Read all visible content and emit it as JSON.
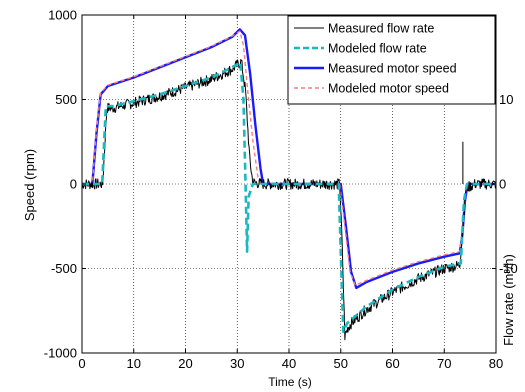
{
  "chart_data": {
    "type": "line",
    "xlabel": "Time (s)",
    "ylabel": "Speed (rpm)",
    "y2label": "Flow rate (m³/h)",
    "xlim": [
      0,
      80
    ],
    "ylim": [
      -1000,
      1000
    ],
    "y2lim": [
      -20,
      20
    ],
    "xticks": [
      "0",
      "10",
      "20",
      "30",
      "40",
      "50",
      "60",
      "70",
      "80"
    ],
    "yticks": [
      "-1000",
      "-500",
      "0",
      "500",
      "1000"
    ],
    "y2ticks": [
      "-10",
      "0",
      "10"
    ],
    "grid": true,
    "legend_position": "top-right",
    "series": [
      {
        "name": "Measured flow rate",
        "axis": "right",
        "color": "#000000",
        "style": "solid",
        "points": [
          [
            0,
            0
          ],
          [
            4,
            0
          ],
          [
            4.8,
            9
          ],
          [
            6,
            9
          ],
          [
            10,
            9.6
          ],
          [
            15,
            10.4
          ],
          [
            20,
            11.4
          ],
          [
            25,
            12.4
          ],
          [
            29,
            13.6
          ],
          [
            30.8,
            14.5
          ],
          [
            31.6,
            11
          ],
          [
            32.4,
            3
          ],
          [
            33,
            0.2
          ],
          [
            35,
            0
          ],
          [
            40,
            0
          ],
          [
            48,
            0
          ],
          [
            49.8,
            0
          ],
          [
            50.2,
            -6
          ],
          [
            50.8,
            -18
          ],
          [
            51.4,
            -17
          ],
          [
            52,
            -16.5
          ],
          [
            55,
            -14.8
          ],
          [
            60,
            -12.8
          ],
          [
            65,
            -11.2
          ],
          [
            70,
            -10
          ],
          [
            73,
            -9.6
          ],
          [
            73.6,
            -5
          ],
          [
            74.2,
            -0.5
          ],
          [
            76,
            0
          ],
          [
            80,
            0
          ]
        ]
      },
      {
        "name": "Modeled flow rate",
        "axis": "right",
        "color": "#1ab8c0",
        "style": "dashed",
        "points": [
          [
            0,
            0
          ],
          [
            3.9,
            0
          ],
          [
            4.6,
            9.2
          ],
          [
            6,
            9.2
          ],
          [
            10,
            9.8
          ],
          [
            15,
            10.6
          ],
          [
            20,
            11.6
          ],
          [
            25,
            12.6
          ],
          [
            29,
            13.8
          ],
          [
            30.6,
            14.4
          ],
          [
            31.2,
            10
          ],
          [
            31.6,
            0
          ],
          [
            31.9,
            -8
          ],
          [
            32.2,
            -1.5
          ],
          [
            33,
            0
          ],
          [
            40,
            0
          ],
          [
            49.6,
            0
          ],
          [
            50,
            -8
          ],
          [
            50.5,
            -17.5
          ],
          [
            51.2,
            -16.5
          ],
          [
            55,
            -14.5
          ],
          [
            60,
            -12.5
          ],
          [
            65,
            -11
          ],
          [
            70,
            -9.8
          ],
          [
            73.2,
            -9.4
          ],
          [
            73.8,
            -2
          ],
          [
            74.4,
            0
          ],
          [
            80,
            0
          ]
        ]
      },
      {
        "name": "Measured motor speed",
        "axis": "left",
        "color": "#1a1aff",
        "style": "solid",
        "points": [
          [
            0,
            0
          ],
          [
            2,
            0
          ],
          [
            2.8,
            300
          ],
          [
            3.6,
            530
          ],
          [
            5,
            580
          ],
          [
            10,
            630
          ],
          [
            15,
            690
          ],
          [
            20,
            750
          ],
          [
            25,
            810
          ],
          [
            29,
            870
          ],
          [
            30.5,
            915
          ],
          [
            31.5,
            880
          ],
          [
            32.5,
            650
          ],
          [
            33.5,
            350
          ],
          [
            34.5,
            90
          ],
          [
            35,
            0
          ],
          [
            40,
            0
          ],
          [
            48,
            0
          ],
          [
            50,
            0
          ],
          [
            51,
            -250
          ],
          [
            52,
            -520
          ],
          [
            53,
            -615
          ],
          [
            55,
            -580
          ],
          [
            60,
            -520
          ],
          [
            65,
            -470
          ],
          [
            70,
            -430
          ],
          [
            73,
            -410
          ],
          [
            73.5,
            -300
          ],
          [
            74,
            -100
          ],
          [
            74.5,
            0
          ],
          [
            80,
            0
          ]
        ]
      },
      {
        "name": "Modeled motor speed",
        "axis": "left",
        "color": "#f08080",
        "style": "dashed",
        "points": [
          [
            0,
            0
          ],
          [
            2,
            0
          ],
          [
            2.8,
            320
          ],
          [
            3.6,
            540
          ],
          [
            5,
            585
          ],
          [
            10,
            635
          ],
          [
            15,
            695
          ],
          [
            20,
            755
          ],
          [
            25,
            815
          ],
          [
            29,
            875
          ],
          [
            30.5,
            905
          ],
          [
            31.2,
            820
          ],
          [
            32,
            560
          ],
          [
            33,
            260
          ],
          [
            34,
            40
          ],
          [
            34.5,
            0
          ],
          [
            40,
            0
          ],
          [
            49.8,
            0
          ],
          [
            50.8,
            -250
          ],
          [
            51.8,
            -520
          ],
          [
            52.8,
            -600
          ],
          [
            55,
            -570
          ],
          [
            60,
            -510
          ],
          [
            65,
            -460
          ],
          [
            70,
            -420
          ],
          [
            73,
            -400
          ],
          [
            73.5,
            -280
          ],
          [
            74,
            -80
          ],
          [
            74.4,
            0
          ],
          [
            80,
            0
          ]
        ]
      }
    ]
  }
}
